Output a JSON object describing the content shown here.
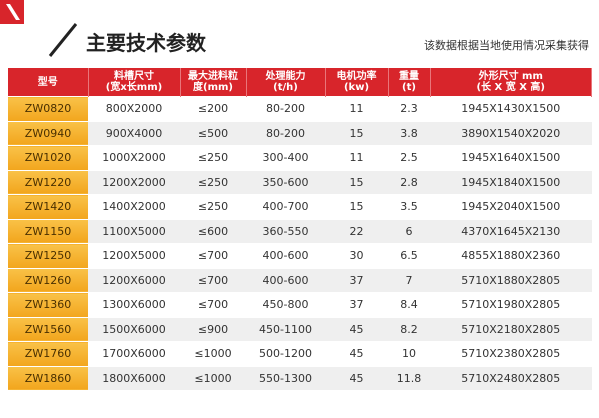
{
  "header": {
    "title": "主要技术参数",
    "note": "该数据根据当地使用情况采集获得"
  },
  "table": {
    "columns": [
      [
        "型号"
      ],
      [
        "料槽尺寸",
        "(宽x长mm)"
      ],
      [
        "最大进料粒",
        "度(mm)"
      ],
      [
        "处理能力",
        "(t/h)"
      ],
      [
        "电机功率",
        "(kw)"
      ],
      [
        "重量",
        "(t)"
      ],
      [
        "外形尺寸 mm",
        "(长 X 宽 X 高)"
      ]
    ],
    "rows": [
      [
        "ZW0820",
        "800X2000",
        "≤200",
        "80-200",
        "11",
        "2.3",
        "1945X1430X1500"
      ],
      [
        "ZW0940",
        "900X4000",
        "≤500",
        "80-200",
        "15",
        "3.8",
        "3890X1540X2020"
      ],
      [
        "ZW1020",
        "1000X2000",
        "≤250",
        "300-400",
        "11",
        "2.5",
        "1945X1640X1500"
      ],
      [
        "ZW1220",
        "1200X2000",
        "≤250",
        "350-600",
        "15",
        "2.8",
        "1945X1840X1500"
      ],
      [
        "ZW1420",
        "1400X2000",
        "≤250",
        "400-700",
        "15",
        "3.5",
        "1945X2040X1500"
      ],
      [
        "ZW1150",
        "1100X5000",
        "≤600",
        "360-550",
        "22",
        "6",
        "4370X1645X2130"
      ],
      [
        "ZW1250",
        "1200X5000",
        "≤700",
        "400-600",
        "30",
        "6.5",
        "4855X1880X2360"
      ],
      [
        "ZW1260",
        "1200X6000",
        "≤700",
        "400-600",
        "37",
        "7",
        "5710X1880X2805"
      ],
      [
        "ZW1360",
        "1300X6000",
        "≤700",
        "450-800",
        "37",
        "8.4",
        "5710X1980X2805"
      ],
      [
        "ZW1560",
        "1500X6000",
        "≤900",
        "450-1100",
        "45",
        "8.2",
        "5710X2180X2805"
      ],
      [
        "ZW1760",
        "1700X6000",
        "≤1000",
        "500-1200",
        "45",
        "10",
        "5710X2380X2805"
      ],
      [
        "ZW1860",
        "1800X6000",
        "≤1000",
        "550-1300",
        "45",
        "11.8",
        "5710X2480X2805"
      ]
    ]
  }
}
